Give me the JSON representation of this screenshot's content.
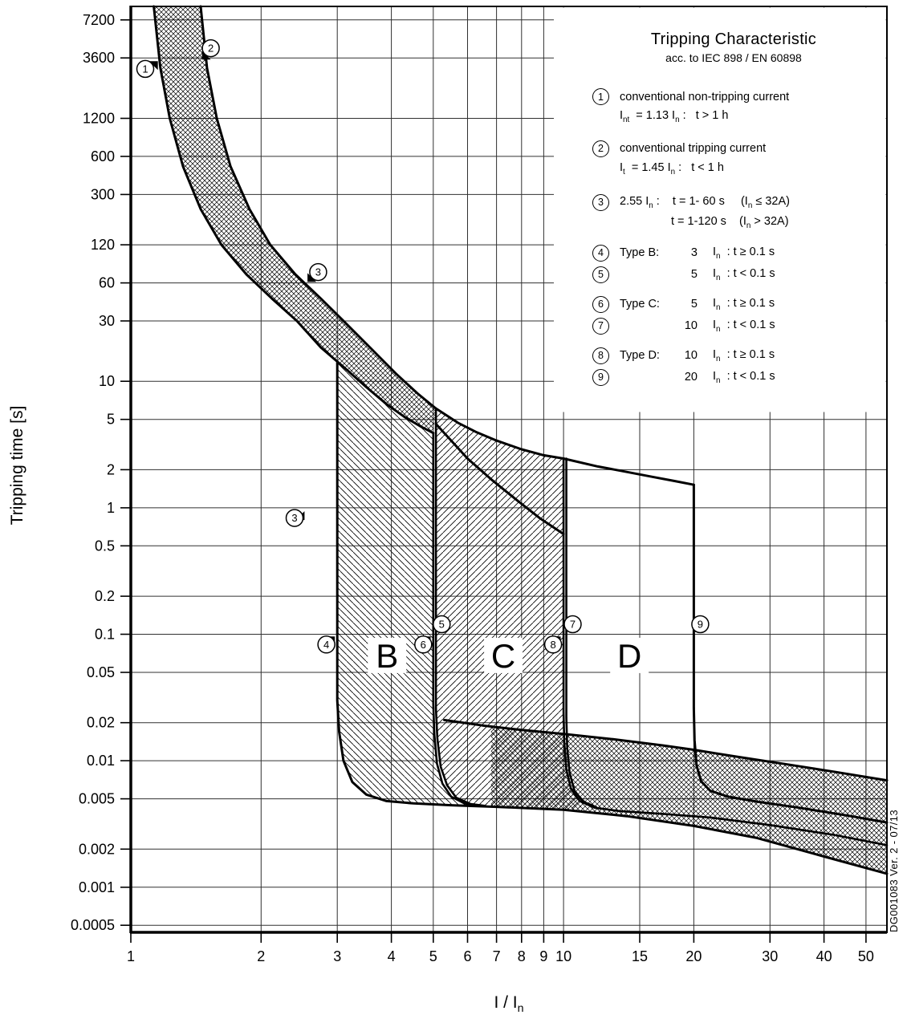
{
  "side_note": "DG001083 Ver. 2 - 07/13",
  "legend": {
    "title": "Tripping Characteristic",
    "subtitle": "acc. to IEC 898 / EN 60898",
    "items": [
      {
        "num": "1",
        "line1": "conventional non-tripping current",
        "line2": "I_{nt}  = 1.13 I_{n} :   t > 1 h",
        "indent": 2
      },
      {
        "num": "2",
        "line1": "conventional tripping current",
        "line2": "I_{t}  = 1.45 I_{n} :   t < 1 h",
        "indent": 2
      },
      {
        "num": "3",
        "line1": "2.55 I_{n} :    t = 1- 60 s     (I_{n} ≤ 32A)",
        "line2": "t = 1-120 s    (I_{n} > 32A)",
        "indent": 66
      },
      {
        "num": "4",
        "label": "Type B:",
        "mult": "3",
        "cond": "I_{n}  : t ≥ 0.1 s"
      },
      {
        "num": "5",
        "label": "",
        "mult": "5",
        "cond": "I_{n}  : t < 0.1 s"
      },
      {
        "num": "6",
        "label": "Type C:",
        "mult": "5",
        "cond": "I_{n}  : t ≥ 0.1 s"
      },
      {
        "num": "7",
        "label": "",
        "mult": "10",
        "cond": "I_{n}  : t < 0.1 s"
      },
      {
        "num": "8",
        "label": "Type D:",
        "mult": "10",
        "cond": "I_{n}  : t ≥ 0.1 s"
      },
      {
        "num": "9",
        "label": "",
        "mult": "20",
        "cond": "I_{n}  : t < 0.1 s"
      }
    ]
  },
  "chart_data": {
    "type": "line",
    "title": "Tripping Characteristic acc. to IEC 898 / EN 60898",
    "xlabel": "I / I_{n}",
    "ylabel": "Tripping time [s]",
    "xscale": "log",
    "yscale": "log",
    "xlim": [
      1,
      55.9
    ],
    "ylim": [
      0.00044,
      9200
    ],
    "grid": true,
    "x_ticks": [
      1,
      2,
      3,
      4,
      5,
      6,
      7,
      8,
      9,
      10,
      15,
      20,
      30,
      40,
      50
    ],
    "y_ticks": [
      7200,
      3600,
      1200,
      600,
      300,
      120,
      60,
      30,
      10,
      5,
      2,
      1,
      0.5,
      0.2,
      0.1,
      0.05,
      0.02,
      0.01,
      0.005,
      0.002,
      0.001,
      0.0005
    ],
    "series": [
      {
        "name": "upper-thermal",
        "w": 3,
        "points": [
          [
            1.45,
            9200
          ],
          [
            1.5,
            3000
          ],
          [
            1.58,
            1200
          ],
          [
            1.7,
            500
          ],
          [
            1.88,
            230
          ],
          [
            2.1,
            120
          ],
          [
            2.4,
            70
          ],
          [
            2.75,
            45
          ],
          [
            3.1,
            30
          ],
          [
            3.6,
            18
          ],
          [
            4.1,
            11.5
          ],
          [
            4.6,
            8
          ],
          [
            5.07,
            6.1
          ]
        ]
      },
      {
        "name": "lower-thermal",
        "w": 3,
        "points": [
          [
            1.13,
            9200
          ],
          [
            1.17,
            3000
          ],
          [
            1.23,
            1200
          ],
          [
            1.32,
            500
          ],
          [
            1.45,
            230
          ],
          [
            1.62,
            120
          ],
          [
            1.85,
            70
          ],
          [
            2.12,
            45
          ],
          [
            2.42,
            30
          ],
          [
            2.75,
            18.5
          ],
          [
            3.1,
            13
          ],
          [
            3.5,
            9
          ],
          [
            3.9,
            6.6
          ],
          [
            4.3,
            5.2
          ],
          [
            4.7,
            4.35
          ],
          [
            5.0,
            3.9
          ]
        ]
      },
      {
        "name": "c-top",
        "w": 3,
        "points": [
          [
            5.07,
            6.1
          ],
          [
            5.7,
            4.7
          ],
          [
            6.3,
            3.95
          ],
          [
            7.0,
            3.4
          ],
          [
            8.0,
            2.9
          ],
          [
            9.0,
            2.6
          ],
          [
            10.0,
            2.45
          ]
        ]
      },
      {
        "name": "d-top",
        "w": 3,
        "points": [
          [
            10.0,
            2.45
          ],
          [
            12,
            2.12
          ],
          [
            14,
            1.92
          ],
          [
            16,
            1.76
          ],
          [
            18,
            1.63
          ],
          [
            20,
            1.52
          ]
        ]
      },
      {
        "name": "c-inner",
        "w": 3,
        "points": [
          [
            5.07,
            4.6
          ],
          [
            5.5,
            3.4
          ],
          [
            6.0,
            2.45
          ],
          [
            6.8,
            1.68
          ],
          [
            7.8,
            1.15
          ],
          [
            8.8,
            0.83
          ],
          [
            10.0,
            0.62
          ]
        ]
      },
      {
        "name": "b-left-and-bottom",
        "w": 3,
        "points": [
          [
            3,
            14
          ],
          [
            3,
            0.03
          ],
          [
            3.03,
            0.017
          ],
          [
            3.1,
            0.01
          ],
          [
            3.25,
            0.0068
          ],
          [
            3.5,
            0.0054
          ],
          [
            3.9,
            0.0048
          ],
          [
            4.5,
            0.0046
          ],
          [
            5.5,
            0.00445
          ],
          [
            7,
            0.00432
          ],
          [
            10,
            0.0041
          ],
          [
            14,
            0.00365
          ],
          [
            20,
            0.00305
          ],
          [
            28,
            0.00245
          ],
          [
            40,
            0.00175
          ],
          [
            55.9,
            0.00128
          ]
        ]
      },
      {
        "name": "b-right",
        "w": 2.6,
        "points": [
          [
            5.0,
            3.9
          ],
          [
            5.0,
            0.028
          ],
          [
            5.03,
            0.016
          ],
          [
            5.1,
            0.0095
          ],
          [
            5.25,
            0.0066
          ],
          [
            5.5,
            0.0052
          ],
          [
            5.9,
            0.0046
          ],
          [
            6.5,
            0.00437
          ]
        ]
      },
      {
        "name": "c-left",
        "w": 2.6,
        "points": [
          [
            5.07,
            6.1
          ],
          [
            5.07,
            0.026
          ],
          [
            5.11,
            0.015
          ],
          [
            5.2,
            0.009
          ],
          [
            5.38,
            0.0064
          ],
          [
            5.65,
            0.0051
          ],
          [
            6.1,
            0.00455
          ],
          [
            6.6,
            0.0044
          ]
        ]
      },
      {
        "name": "c-right",
        "w": 2.6,
        "points": [
          [
            10,
            2.45
          ],
          [
            10,
            0.024
          ],
          [
            10.04,
            0.014
          ],
          [
            10.15,
            0.0085
          ],
          [
            10.4,
            0.006
          ],
          [
            10.9,
            0.0048
          ],
          [
            11.8,
            0.00425
          ],
          [
            13.5,
            0.004
          ],
          [
            17,
            0.0038
          ],
          [
            22,
            0.00355
          ],
          [
            30,
            0.0031
          ],
          [
            42,
            0.0026
          ],
          [
            55.9,
            0.00215
          ]
        ]
      },
      {
        "name": "d-left",
        "w": 2.6,
        "points": [
          [
            10.15,
            2.45
          ],
          [
            10.15,
            0.022
          ],
          [
            10.2,
            0.0125
          ],
          [
            10.33,
            0.008
          ],
          [
            10.6,
            0.0058
          ],
          [
            11.1,
            0.00475
          ],
          [
            11.9,
            0.0043
          ]
        ]
      },
      {
        "name": "d-right-20",
        "w": 3,
        "points": [
          [
            20,
            1.52
          ],
          [
            20,
            0.026
          ],
          [
            20.08,
            0.0145
          ],
          [
            20.3,
            0.0092
          ],
          [
            20.8,
            0.0069
          ],
          [
            21.8,
            0.0058
          ],
          [
            24,
            0.0052
          ],
          [
            28,
            0.00475
          ],
          [
            35,
            0.00425
          ],
          [
            45,
            0.0037
          ],
          [
            55.9,
            0.00325
          ]
        ]
      },
      {
        "name": "band-top",
        "w": 3,
        "points": [
          [
            5.3,
            0.021
          ],
          [
            6.5,
            0.019
          ],
          [
            8,
            0.0175
          ],
          [
            10,
            0.0163
          ],
          [
            13,
            0.0148
          ],
          [
            17,
            0.0132
          ],
          [
            20,
            0.0122
          ],
          [
            25,
            0.0108
          ],
          [
            32,
            0.0095
          ],
          [
            42,
            0.0082
          ],
          [
            55.9,
            0.007
          ]
        ]
      }
    ],
    "regions": [
      {
        "name": "thermal-band",
        "hatch": "cross",
        "points": [
          [
            1.45,
            9200
          ],
          [
            1.5,
            3000
          ],
          [
            1.58,
            1200
          ],
          [
            1.7,
            500
          ],
          [
            1.88,
            230
          ],
          [
            2.1,
            120
          ],
          [
            2.4,
            70
          ],
          [
            2.75,
            45
          ],
          [
            3.1,
            30
          ],
          [
            3.6,
            18
          ],
          [
            4.1,
            11.5
          ],
          [
            4.6,
            8
          ],
          [
            5.07,
            6.1
          ],
          [
            5.0,
            3.9
          ],
          [
            4.7,
            4.35
          ],
          [
            4.3,
            5.2
          ],
          [
            3.9,
            6.6
          ],
          [
            3.5,
            9
          ],
          [
            3.1,
            13
          ],
          [
            2.75,
            18.5
          ],
          [
            2.42,
            30
          ],
          [
            2.12,
            45
          ],
          [
            1.85,
            70
          ],
          [
            1.62,
            120
          ],
          [
            1.45,
            230
          ],
          [
            1.32,
            500
          ],
          [
            1.23,
            1200
          ],
          [
            1.17,
            3000
          ],
          [
            1.13,
            9200
          ]
        ]
      },
      {
        "name": "type-b",
        "hatch": "back",
        "points": [
          [
            3,
            14
          ],
          [
            3,
            0.03
          ],
          [
            3.03,
            0.017
          ],
          [
            3.1,
            0.01
          ],
          [
            3.25,
            0.0068
          ],
          [
            3.5,
            0.0054
          ],
          [
            3.9,
            0.0048
          ],
          [
            4.5,
            0.0046
          ],
          [
            5.5,
            0.00445
          ],
          [
            6.3,
            0.00438
          ],
          [
            5.9,
            0.0046
          ],
          [
            5.5,
            0.0052
          ],
          [
            5.25,
            0.0066
          ],
          [
            5.1,
            0.0095
          ],
          [
            5.03,
            0.016
          ],
          [
            5.0,
            0.028
          ],
          [
            5.0,
            3.9
          ],
          [
            4.7,
            4.35
          ],
          [
            4.3,
            5.2
          ],
          [
            3.9,
            6.6
          ],
          [
            3.5,
            9
          ],
          [
            3.1,
            13
          ]
        ]
      },
      {
        "name": "type-c",
        "hatch": "fwd",
        "points": [
          [
            5.07,
            6.1
          ],
          [
            5.07,
            0.026
          ],
          [
            5.11,
            0.015
          ],
          [
            5.2,
            0.009
          ],
          [
            5.38,
            0.0064
          ],
          [
            5.65,
            0.0051
          ],
          [
            6.1,
            0.00455
          ],
          [
            6.6,
            0.0044
          ],
          [
            8,
            0.0043
          ],
          [
            10,
            0.0041
          ],
          [
            11,
            0.00428
          ],
          [
            10.9,
            0.0048
          ],
          [
            10.4,
            0.006
          ],
          [
            10.15,
            0.0085
          ],
          [
            10.04,
            0.014
          ],
          [
            10,
            0.024
          ],
          [
            10,
            2.45
          ],
          [
            9.0,
            2.6
          ],
          [
            8.0,
            2.9
          ],
          [
            7.0,
            3.4
          ],
          [
            6.3,
            3.95
          ],
          [
            5.7,
            4.7
          ]
        ]
      },
      {
        "name": "instantaneous-band",
        "hatch": "cross",
        "points": [
          [
            6.8,
            0.0186
          ],
          [
            8,
            0.0175
          ],
          [
            10,
            0.0163
          ],
          [
            13,
            0.0148
          ],
          [
            17,
            0.0132
          ],
          [
            20,
            0.0122
          ],
          [
            25,
            0.0108
          ],
          [
            32,
            0.0095
          ],
          [
            42,
            0.0082
          ],
          [
            55.9,
            0.007
          ],
          [
            55.9,
            0.00128
          ],
          [
            40,
            0.00175
          ],
          [
            28,
            0.00245
          ],
          [
            20,
            0.00305
          ],
          [
            14,
            0.00365
          ],
          [
            10,
            0.0041
          ],
          [
            7,
            0.00432
          ],
          [
            6.8,
            0.00434
          ]
        ]
      }
    ],
    "markers": [
      {
        "n": "1",
        "x": 1.08,
        "y": 2950,
        "fx": 1.155,
        "fy": 3400,
        "dir": "ne"
      },
      {
        "n": "2",
        "x": 1.53,
        "y": 4300,
        "fx": 1.46,
        "fy": 3500,
        "dir": "sw"
      },
      {
        "n": "3",
        "x": 2.71,
        "y": 73,
        "fx": 2.56,
        "fy": 61,
        "dir": "sw"
      },
      {
        "n": "3",
        "x": 2.39,
        "y": 0.83,
        "fx": 2.52,
        "fy": 0.8,
        "dir": "se"
      },
      {
        "n": "4",
        "x": 2.83,
        "y": 0.083,
        "fx": 2.96,
        "fy": 0.096,
        "dir": "ne"
      },
      {
        "n": "5",
        "x": 5.23,
        "y": 0.12,
        "fx": 5.06,
        "fy": 0.104,
        "dir": "sw"
      },
      {
        "n": "6",
        "x": 4.74,
        "y": 0.083,
        "fx": 4.93,
        "fy": 0.096,
        "dir": "ne"
      },
      {
        "n": "7",
        "x": 10.5,
        "y": 0.12,
        "fx": 10.3,
        "fy": 0.104,
        "dir": "sw"
      },
      {
        "n": "8",
        "x": 9.46,
        "y": 0.083,
        "fx": 9.85,
        "fy": 0.096,
        "dir": "ne"
      },
      {
        "n": "9",
        "x": 20.7,
        "y": 0.12,
        "fx": 20.15,
        "fy": 0.104,
        "dir": "sw"
      }
    ],
    "region_labels": [
      {
        "text": "B",
        "x": 3.91,
        "y": 0.068
      },
      {
        "text": "C",
        "x": 7.26,
        "y": 0.068
      },
      {
        "text": "D",
        "x": 14.2,
        "y": 0.068
      }
    ]
  }
}
